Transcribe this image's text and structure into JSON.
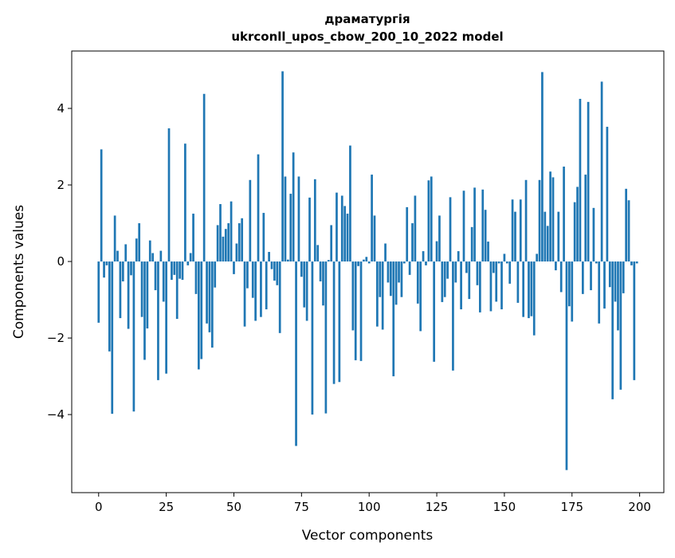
{
  "chart_data": {
    "type": "bar",
    "title": "драматургія",
    "subtitle": "ukrconll_upos_cbow_200_10_2022 model",
    "xlabel": "Vector components",
    "ylabel": "Components values",
    "xlim": [
      -9.95,
      208.95
    ],
    "ylim": [
      -6.04,
      5.5
    ],
    "xticks": [
      0,
      25,
      50,
      75,
      100,
      125,
      150,
      175,
      200
    ],
    "xtick_labels": [
      "0",
      "25",
      "50",
      "75",
      "100",
      "125",
      "150",
      "175",
      "200"
    ],
    "yticks": [
      -4,
      -2,
      0,
      2,
      4
    ],
    "ytick_labels": [
      "−4",
      "−2",
      "0",
      "2",
      "4"
    ],
    "grid": false,
    "color": "#1f77b4",
    "values": [
      -1.6,
      2.93,
      -0.42,
      -0.1,
      -2.35,
      -3.98,
      1.2,
      0.28,
      -1.48,
      -0.52,
      0.45,
      -1.76,
      -0.36,
      -3.92,
      0.6,
      1.0,
      -1.45,
      -2.57,
      -1.75,
      0.55,
      0.22,
      -0.75,
      -3.1,
      0.28,
      -1.05,
      -2.93,
      3.48,
      -0.48,
      -0.35,
      -1.5,
      -0.45,
      -0.48,
      3.08,
      -0.1,
      0.22,
      1.25,
      -0.85,
      -2.82,
      -2.55,
      4.38,
      -1.62,
      -1.85,
      -2.25,
      -0.68,
      0.95,
      1.5,
      0.65,
      0.85,
      1.0,
      1.57,
      -0.33,
      0.47,
      1.0,
      1.13,
      -1.7,
      -0.7,
      2.13,
      -0.95,
      -1.55,
      2.8,
      -1.45,
      1.27,
      -1.25,
      0.25,
      -0.2,
      -0.5,
      -0.62,
      -1.87,
      4.97,
      2.22,
      0.05,
      1.77,
      2.85,
      -4.82,
      2.22,
      -0.4,
      -1.2,
      -1.55,
      1.67,
      -4.0,
      2.15,
      0.43,
      -0.52,
      -1.15,
      -3.97,
      0.04,
      0.95,
      -3.2,
      1.8,
      -3.15,
      1.72,
      1.45,
      1.25,
      3.03,
      -1.8,
      -2.58,
      -0.12,
      -2.6,
      0.05,
      0.12,
      -0.05,
      2.27,
      1.2,
      -1.7,
      -0.93,
      -1.78,
      0.47,
      -0.55,
      -0.9,
      -3.0,
      -1.13,
      -0.55,
      -0.93,
      -0.05,
      1.42,
      -0.35,
      1.0,
      1.72,
      -1.1,
      -1.82,
      0.27,
      -0.1,
      2.12,
      2.22,
      -2.62,
      0.53,
      1.2,
      -1.06,
      -0.93,
      -0.45,
      1.68,
      -2.85,
      -0.55,
      0.27,
      -1.25,
      1.85,
      -0.3,
      -0.98,
      0.9,
      1.93,
      -0.62,
      -1.33,
      1.88,
      1.35,
      0.52,
      -1.3,
      -0.3,
      -1.05,
      -0.05,
      -1.25,
      0.2,
      -0.05,
      -0.58,
      1.62,
      1.3,
      -1.08,
      1.62,
      -1.45,
      2.13,
      -1.48,
      -1.43,
      -1.93,
      0.2,
      2.13,
      4.95,
      1.3,
      0.93,
      2.35,
      2.2,
      -0.23,
      1.3,
      -0.8,
      2.48,
      -5.45,
      -1.17,
      -1.57,
      1.55,
      1.95,
      4.25,
      -0.85,
      2.27,
      4.17,
      -0.75,
      1.4,
      -0.05,
      -1.62,
      4.7,
      -1.23,
      3.52,
      -0.67,
      -3.6,
      -1.05,
      -1.8,
      -3.35,
      -0.83,
      1.9,
      1.6,
      -0.1,
      -3.1,
      -0.05
    ]
  }
}
